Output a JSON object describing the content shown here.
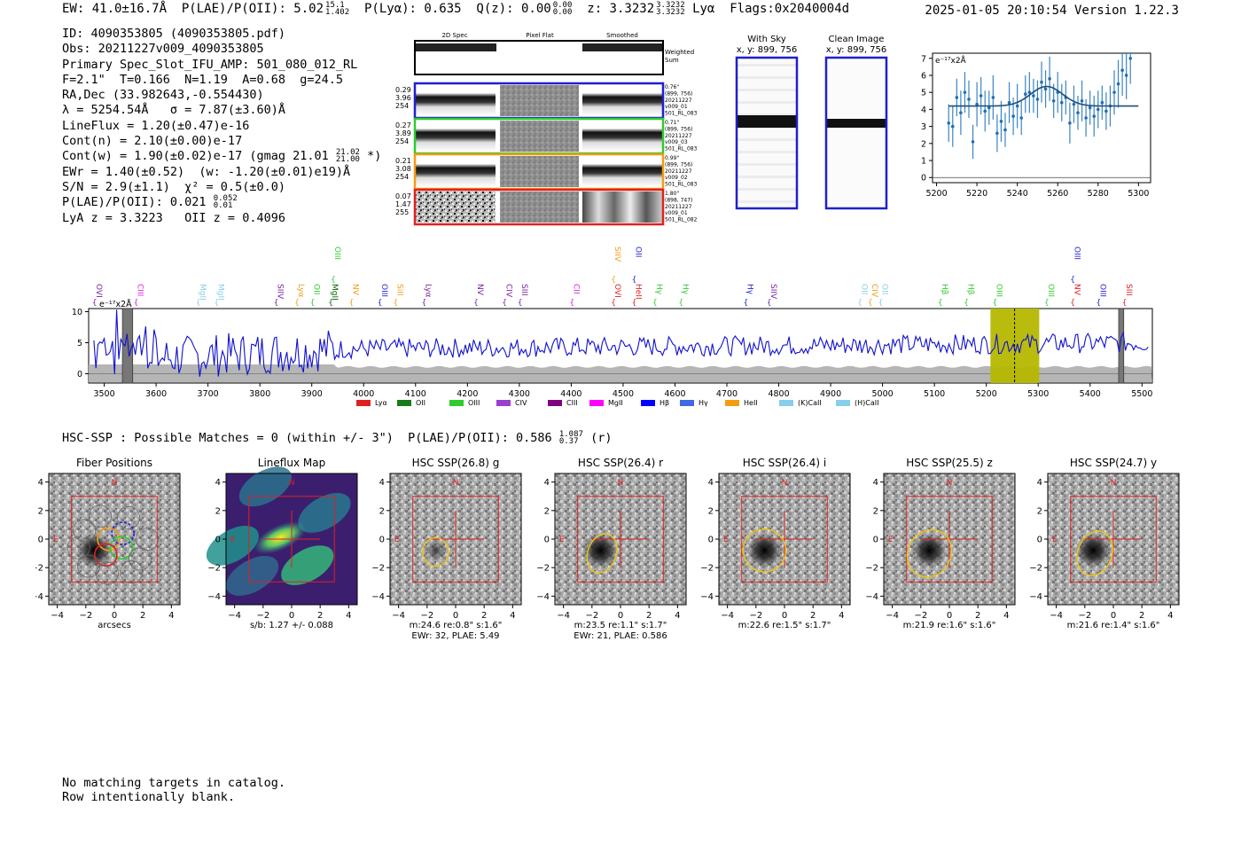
{
  "header": {
    "ew": "EW: 41.0±16.7Å",
    "plae_label": "P(LAE)/P(OII): 5.02",
    "plae_hi": "15.1",
    "plae_lo": "1.402",
    "plya": "P(Lyα): 0.635",
    "qz_label": "Q(z): 0.00",
    "qz_hi": "0.00",
    "qz_lo": "0.00",
    "z_label": "z: 3.3232",
    "z_hi": "3.3232",
    "z_lo": "3.3232",
    "line": "Lyα",
    "flags": "Flags:0x2040004d",
    "timestamp": "2025-01-05 20:10:54",
    "version": "Version 1.22.3"
  },
  "info": {
    "l1": "ID: 4090353805 (4090353805.pdf)",
    "l2": "Obs: 20211227v009_4090353805",
    "l3": "Primary Spec_Slot_IFU_AMP: 501_080_012_RL",
    "l4": "F=2.1\"  T=0.166  N=1.19  A=0.68  g=24.5",
    "l5": "RA,Dec (33.982643,-0.554430)",
    "l6": "λ = 5254.54Å   σ = 7.87(±3.60)Å",
    "l7": "LineFlux = 1.20(±0.47)e-16",
    "l8": "Cont(n) = 2.10(±0.00)e-17",
    "l9a": "Cont(w) = 1.90(±0.02)e-17 (gmag 21.01",
    "l9_hi": "21.02",
    "l9_lo": "21.00",
    "l9b": "*)",
    "l10": "EWr = 1.40(±0.52)  (w: -1.20(±0.01)e19)Å",
    "l11": "S/N = 2.9(±1.1)  χ² = 0.5(±0.0)",
    "l12a": "P(LAE)/P(OII): 0.021",
    "l12_hi": "0.052",
    "l12_lo": "0.01",
    "l13": "LyA z = 3.3223   OII z = 0.4096"
  },
  "cutouts": {
    "col_titles": [
      "2D Spec",
      "Pixel Flat",
      "Smoothed"
    ],
    "weighted_sum": [
      "Weighted",
      "Sum"
    ],
    "rows": [
      {
        "left": [
          "0.29",
          "3.96",
          "254"
        ],
        "right": [
          "0.76\"",
          "(899, 756)",
          "20211227",
          "v009_01",
          "501_RL_083"
        ],
        "color": "#1f1fd0"
      },
      {
        "left": [
          "0.27",
          "3.89",
          "254"
        ],
        "right": [
          "0.71\"",
          "(899, 756)",
          "20211227",
          "v009_03",
          "501_RL_083"
        ],
        "color": "#2ecc2e"
      },
      {
        "left": [
          "0.21",
          "3.08",
          "254"
        ],
        "right": [
          "0.99\"",
          "(899, 756)",
          "20211227",
          "v009_02",
          "501_RL_083"
        ],
        "color": "#f39c12"
      },
      {
        "left": [
          "0.07",
          "1.47",
          "255"
        ],
        "right": [
          "1.80\"",
          "(898, 747)",
          "20211227",
          "v009_01",
          "501_RL_082"
        ],
        "color": "#e02020"
      }
    ]
  },
  "sky": {
    "with_sky": [
      "With Sky",
      "x, y: 899, 756"
    ],
    "clean": [
      "Clean Image",
      "x, y: 899, 756"
    ]
  },
  "fit_chart": {
    "type": "line",
    "ylabel": "e⁻¹⁷x2Å",
    "xlim": [
      5198,
      5306
    ],
    "ylim": [
      -0.3,
      7.3
    ],
    "xticks": [
      5200,
      5220,
      5240,
      5260,
      5280,
      5300
    ],
    "yticks": [
      0,
      1,
      2,
      3,
      4,
      5,
      6,
      7
    ],
    "model": {
      "continuum": 4.2,
      "amplitude": 1.15,
      "center": 5254.5,
      "sigma": 7.9
    },
    "points": [
      [
        5206,
        3.2,
        1.1
      ],
      [
        5208,
        3.0,
        1.2
      ],
      [
        5210,
        4.7,
        1.1
      ],
      [
        5212,
        3.8,
        1.3
      ],
      [
        5214,
        5.0,
        1.2
      ],
      [
        5216,
        4.6,
        1.1
      ],
      [
        5218,
        2.1,
        1.0
      ],
      [
        5220,
        4.3,
        1.3
      ],
      [
        5222,
        4.8,
        1.1
      ],
      [
        5224,
        3.9,
        1.2
      ],
      [
        5226,
        4.1,
        1.0
      ],
      [
        5228,
        4.7,
        1.3
      ],
      [
        5230,
        2.6,
        1.1
      ],
      [
        5232,
        3.3,
        1.2
      ],
      [
        5234,
        2.8,
        1.0
      ],
      [
        5236,
        4.4,
        1.2
      ],
      [
        5238,
        3.6,
        1.1
      ],
      [
        5240,
        4.2,
        1.3
      ],
      [
        5242,
        3.5,
        1.0
      ],
      [
        5244,
        4.9,
        1.1
      ],
      [
        5246,
        5.0,
        1.2
      ],
      [
        5248,
        4.8,
        1.0
      ],
      [
        5250,
        4.6,
        1.1
      ],
      [
        5252,
        5.6,
        1.2
      ],
      [
        5254,
        5.2,
        1.1
      ],
      [
        5256,
        5.8,
        1.3
      ],
      [
        5258,
        4.5,
        1.0
      ],
      [
        5260,
        5.0,
        1.2
      ],
      [
        5262,
        4.4,
        1.1
      ],
      [
        5264,
        4.7,
        1.0
      ],
      [
        5266,
        3.2,
        1.2
      ],
      [
        5268,
        4.3,
        1.1
      ],
      [
        5270,
        3.8,
        1.0
      ],
      [
        5272,
        4.5,
        1.2
      ],
      [
        5274,
        3.5,
        1.1
      ],
      [
        5276,
        4.1,
        1.0
      ],
      [
        5278,
        3.6,
        1.2
      ],
      [
        5280,
        4.0,
        1.1
      ],
      [
        5282,
        4.4,
        1.0
      ],
      [
        5284,
        3.9,
        1.1
      ],
      [
        5286,
        4.2,
        1.2
      ],
      [
        5288,
        5.0,
        1.3
      ],
      [
        5290,
        5.5,
        1.4
      ],
      [
        5292,
        6.3,
        1.5
      ],
      [
        5294,
        6.0,
        1.4
      ],
      [
        5296,
        7.0,
        1.5
      ]
    ]
  },
  "chart_data": {
    "type": "line",
    "ylabel": "e⁻¹⁷x2Å",
    "xlim": [
      3470,
      5520
    ],
    "ylim": [
      -1.5,
      10.5
    ],
    "xticks": [
      3500,
      3600,
      3700,
      3800,
      3900,
      4000,
      4100,
      4200,
      4300,
      4400,
      4500,
      4600,
      4700,
      4800,
      4900,
      5000,
      5100,
      5200,
      5300,
      5400,
      5500
    ],
    "yticks": [
      0,
      5,
      10
    ],
    "highlight": {
      "x0": 5208,
      "x1": 5302,
      "center": 5254.5,
      "color": "#b5b800"
    },
    "masked": [
      [
        3535,
        3555
      ],
      [
        5455,
        5465
      ]
    ],
    "series_color": "#1010d0",
    "lines": [
      {
        "name": "OVI",
        "x": 3480,
        "color": "#7a1fa2"
      },
      {
        "name": "CIII",
        "x": 3560,
        "color": "#e020e0"
      },
      {
        "name": "MgII",
        "x": 3680,
        "color": "#87ceeb"
      },
      {
        "name": "MgII",
        "x": 3715,
        "color": "#87ceeb"
      },
      {
        "name": "SIIV",
        "x": 3830,
        "color": "#7a1fa2"
      },
      {
        "name": "Lyα",
        "x": 3870,
        "color": "#f39c12"
      },
      {
        "name": "OII",
        "x": 3900,
        "color": "#2ecc2e"
      },
      {
        "name": "MgII",
        "x": 3935,
        "color": "#006400"
      },
      {
        "name": "OIII",
        "x": 3940,
        "color": "#2ecc2e",
        "high": true
      },
      {
        "name": "NV",
        "x": 3975,
        "color": "#f39c12"
      },
      {
        "name": "OIII",
        "x": 4030,
        "color": "#1f1fd0"
      },
      {
        "name": "SiII",
        "x": 4060,
        "color": "#f39c12"
      },
      {
        "name": "Lyα",
        "x": 4115,
        "color": "#7a1fa2"
      },
      {
        "name": "NV",
        "x": 4215,
        "color": "#7a1fa2"
      },
      {
        "name": "CIV",
        "x": 4270,
        "color": "#7a1fa2"
      },
      {
        "name": "SIII",
        "x": 4300,
        "color": "#7a1fa2"
      },
      {
        "name": "CII",
        "x": 4400,
        "color": "#e020e0"
      },
      {
        "name": "OVI",
        "x": 4480,
        "color": "#e02020"
      },
      {
        "name": "SIIV",
        "x": 4480,
        "color": "#f39c12",
        "high": true
      },
      {
        "name": "HeII",
        "x": 4520,
        "color": "#e02020"
      },
      {
        "name": "OII",
        "x": 4520,
        "color": "#1f1fd0",
        "high": true
      },
      {
        "name": "Hγ",
        "x": 4560,
        "color": "#2ecc2e"
      },
      {
        "name": "Hγ",
        "x": 4610,
        "color": "#2ecc2e"
      },
      {
        "name": "Hγ",
        "x": 4735,
        "color": "#1f1fd0"
      },
      {
        "name": "SIIV",
        "x": 4780,
        "color": "#7a1fa2"
      },
      {
        "name": "OII",
        "x": 4955,
        "color": "#87ceeb"
      },
      {
        "name": "CIV",
        "x": 4975,
        "color": "#f39c12"
      },
      {
        "name": "OII",
        "x": 4995,
        "color": "#87ceeb"
      },
      {
        "name": "Hβ",
        "x": 5110,
        "color": "#2ecc2e"
      },
      {
        "name": "Hβ",
        "x": 5160,
        "color": "#2ecc2e"
      },
      {
        "name": "OIII",
        "x": 5215,
        "color": "#2ecc2e"
      },
      {
        "name": "OIII",
        "x": 5315,
        "color": "#2ecc2e"
      },
      {
        "name": "NV",
        "x": 5365,
        "color": "#e02020"
      },
      {
        "name": "OIII",
        "x": 5365,
        "color": "#1f1fd0",
        "high": true
      },
      {
        "name": "OIII",
        "x": 5415,
        "color": "#1f1fd0"
      },
      {
        "name": "SIII",
        "x": 5465,
        "color": "#e02020"
      }
    ],
    "legend": [
      {
        "name": "Lyα",
        "color": "#e02020"
      },
      {
        "name": "OII",
        "color": "#1a7a1a"
      },
      {
        "name": "OIII",
        "color": "#2ecc2e"
      },
      {
        "name": "CIV",
        "color": "#9a3fd0"
      },
      {
        "name": "CIII",
        "color": "#800080"
      },
      {
        "name": "MgII",
        "color": "#ff00ff"
      },
      {
        "name": "Hβ",
        "color": "#0000ff"
      },
      {
        "name": "Hγ",
        "color": "#4169e1"
      },
      {
        "name": "HeII",
        "color": "#f39c12"
      },
      {
        "name": "(K)CaII",
        "color": "#87ceeb"
      },
      {
        "name": "(H)CaII",
        "color": "#87ceeb"
      }
    ]
  },
  "hsc": {
    "title_a": "HSC-SSP : Possible Matches = 0 (within +/- 3\")  P(LAE)/P(OII): 0.586",
    "title_hi": "1.087",
    "title_lo": "0.37",
    "title_b": "(r)",
    "ticks": [
      -4,
      -2,
      0,
      2,
      4
    ],
    "panels": [
      {
        "title": "Fiber Positions",
        "kind": "fiber",
        "captions": [
          "arcsecs"
        ]
      },
      {
        "title": "Lineflux Map",
        "kind": "flux",
        "captions": [
          "s/b: 1.27 +/- 0.088"
        ]
      },
      {
        "title": "HSC SSP(26.8) g",
        "kind": "img",
        "ell": [
          -1.4,
          -0.9,
          0.9,
          1.0,
          0
        ],
        "captions": [
          "m:24.6  re:0.8\"  s:1.6\"",
          "EWr: 32, PLAE: 5.49"
        ]
      },
      {
        "title": "HSC SSP(26.4) r",
        "kind": "img",
        "ell": [
          -1.3,
          -1.0,
          1.0,
          1.4,
          20
        ],
        "captions": [
          "m:23.5  re:1.1\"  s:1.7\"",
          "EWr: 21, PLAE: 0.586"
        ]
      },
      {
        "title": "HSC SSP(26.4) i",
        "kind": "img",
        "ell": [
          -1.4,
          -0.8,
          1.5,
          1.5,
          30
        ],
        "captions": [
          "m:22.6  re:1.5\"  s:1.7\""
        ]
      },
      {
        "title": "HSC SSP(25.5) z",
        "kind": "img",
        "ell": [
          -1.4,
          -1.0,
          1.5,
          1.7,
          30
        ],
        "captions": [
          "m:21.9  re:1.6\"  s:1.6\""
        ]
      },
      {
        "title": "HSC SSP(24.7) y",
        "kind": "img",
        "ell": [
          -1.3,
          -1.0,
          1.2,
          1.6,
          20
        ],
        "captions": [
          "m:21.6  re:1.4\"  s:1.6\""
        ]
      }
    ],
    "north": "N",
    "east": "E"
  },
  "footer": {
    "l1": "No matching targets in catalog.",
    "l2": "Row intentionally blank."
  }
}
